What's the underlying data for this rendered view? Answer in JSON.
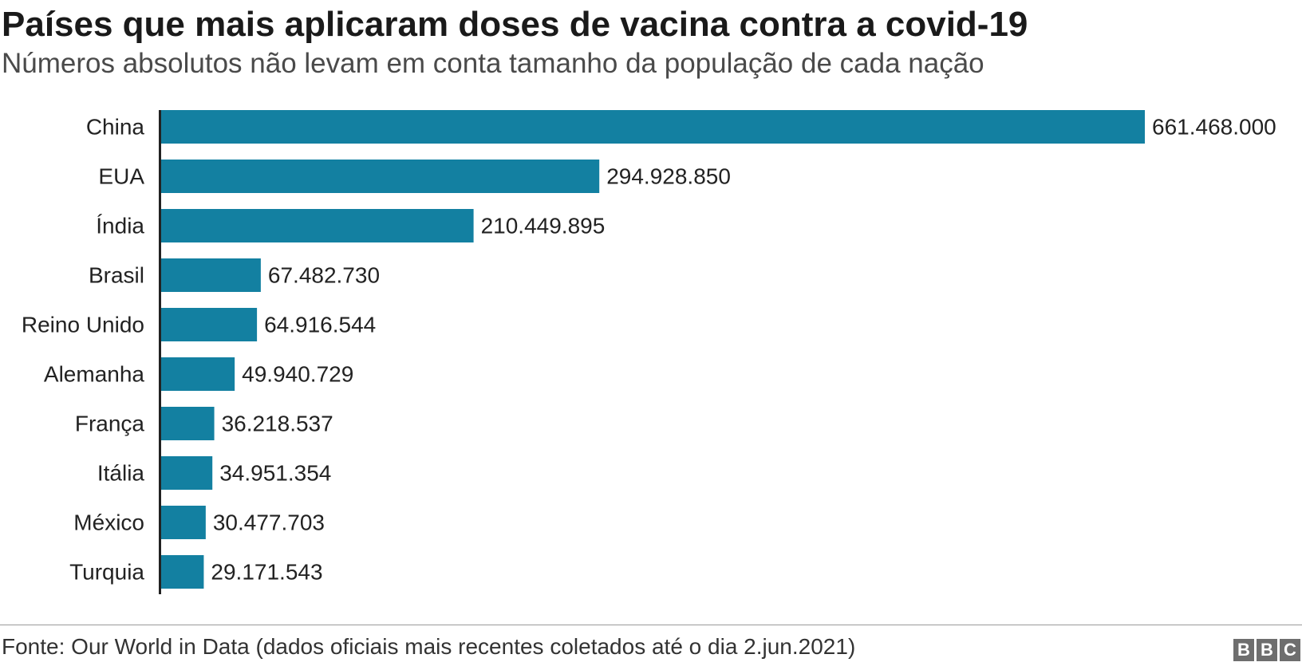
{
  "header": {
    "title": "Países que mais aplicaram doses de vacina contra a covid-19",
    "subtitle": "Números absolutos não levam em conta tamanho da população de cada nação"
  },
  "footer": {
    "source": "Fonte: Our World in Data (dados oficiais mais recentes coletados até o dia 2.jun.2021)",
    "logo_letters": [
      "B",
      "B",
      "C"
    ]
  },
  "colors": {
    "bar": "#1380A1",
    "axis": "#222222"
  },
  "chart_data": {
    "type": "bar",
    "orientation": "horizontal",
    "title": "Países que mais aplicaram doses de vacina contra a covid-19",
    "subtitle": "Números absolutos não levam em conta tamanho da população de cada nação",
    "categories": [
      "China",
      "EUA",
      "Índia",
      "Brasil",
      "Reino Unido",
      "Alemanha",
      "França",
      "Itália",
      "México",
      "Turquia"
    ],
    "values": [
      661468000,
      294928850,
      210449895,
      67482730,
      64916544,
      49940729,
      36218537,
      34951354,
      30477703,
      29171543
    ],
    "value_labels": [
      "661.468.000",
      "294.928.850",
      "210.449.895",
      "67.482.730",
      "64.916.544",
      "49.940.729",
      "36.218.537",
      "34.951.354",
      "30.477.703",
      "29.171.543"
    ],
    "xlim": [
      0,
      661468000
    ],
    "grid": false,
    "legend": "none"
  }
}
